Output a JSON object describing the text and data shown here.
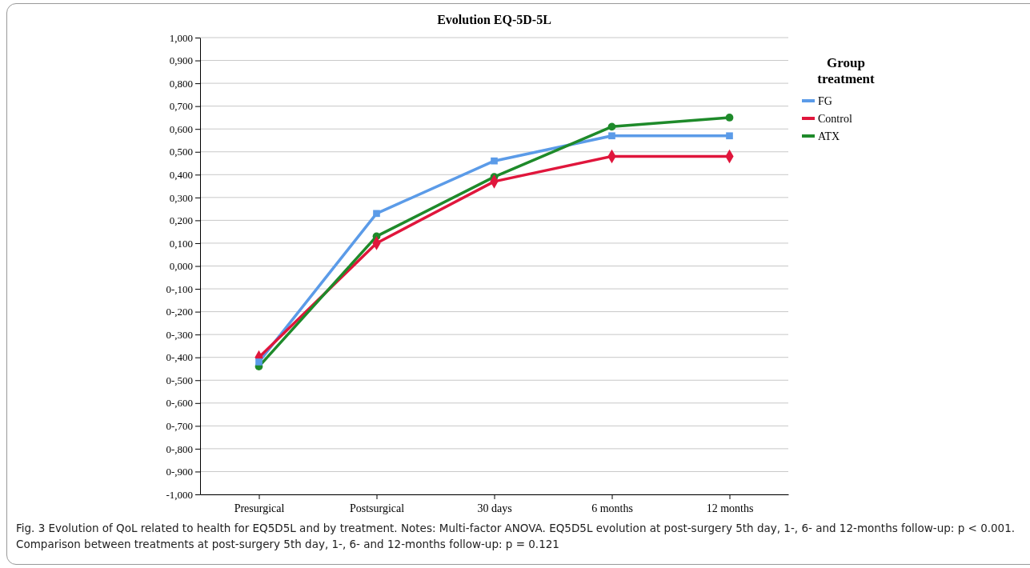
{
  "chart_data": {
    "type": "line",
    "title": "Evolution EQ-5D-5L",
    "legend_title": "Group treatment",
    "categories": [
      "Presurgical",
      "Postsurgical",
      "30 days",
      "6 months",
      "12 months"
    ],
    "series": [
      {
        "name": "FG",
        "color": "#5b9be8",
        "marker": "square",
        "values": [
          -0.42,
          0.23,
          0.46,
          0.57,
          0.57
        ]
      },
      {
        "name": "Control",
        "color": "#e0163c",
        "marker": "diamond",
        "values": [
          -0.4,
          0.1,
          0.37,
          0.48,
          0.48
        ]
      },
      {
        "name": "ATX",
        "color": "#1e8a2a",
        "marker": "circle",
        "values": [
          -0.44,
          0.13,
          0.39,
          0.61,
          0.65
        ]
      }
    ],
    "ylim": [
      -1,
      1
    ],
    "yticks": [
      {
        "value": 1,
        "label": "1,000"
      },
      {
        "value": 0.9,
        "label": "0,900"
      },
      {
        "value": 0.8,
        "label": "0,800"
      },
      {
        "value": 0.7,
        "label": "0,700"
      },
      {
        "value": 0.6,
        "label": "0,600"
      },
      {
        "value": 0.5,
        "label": "0,500"
      },
      {
        "value": 0.4,
        "label": "0,400"
      },
      {
        "value": 0.3,
        "label": "0,300"
      },
      {
        "value": 0.2,
        "label": "0,200"
      },
      {
        "value": 0.1,
        "label": "0,100"
      },
      {
        "value": 0,
        "label": "0,000"
      },
      {
        "value": -0.1,
        "label": "0-,100"
      },
      {
        "value": -0.2,
        "label": "0-,200"
      },
      {
        "value": -0.3,
        "label": "0-,300"
      },
      {
        "value": -0.4,
        "label": "0-,400"
      },
      {
        "value": -0.5,
        "label": "0-,500"
      },
      {
        "value": -0.6,
        "label": "0-,600"
      },
      {
        "value": -0.7,
        "label": "0-,700"
      },
      {
        "value": -0.8,
        "label": "0-,800"
      },
      {
        "value": -0.9,
        "label": "0-,900"
      },
      {
        "value": -1,
        "label": "-1,000"
      }
    ],
    "grid": "y",
    "legend": "top right",
    "line_style": "solid",
    "annotations": [
      "Fig. 3 Evolution of QoL related to health for EQ5D5L and by treatment. Notes: Multi-factor ANOVA. EQ5D5L evolution at post-surgery 5th day, 1-, 6- and 12-months follow-up: p < 0.001. Comparison between treatments at post-surgery 5th day, 1-, 6- and 12-months follow-up: p = 0.121"
    ]
  }
}
